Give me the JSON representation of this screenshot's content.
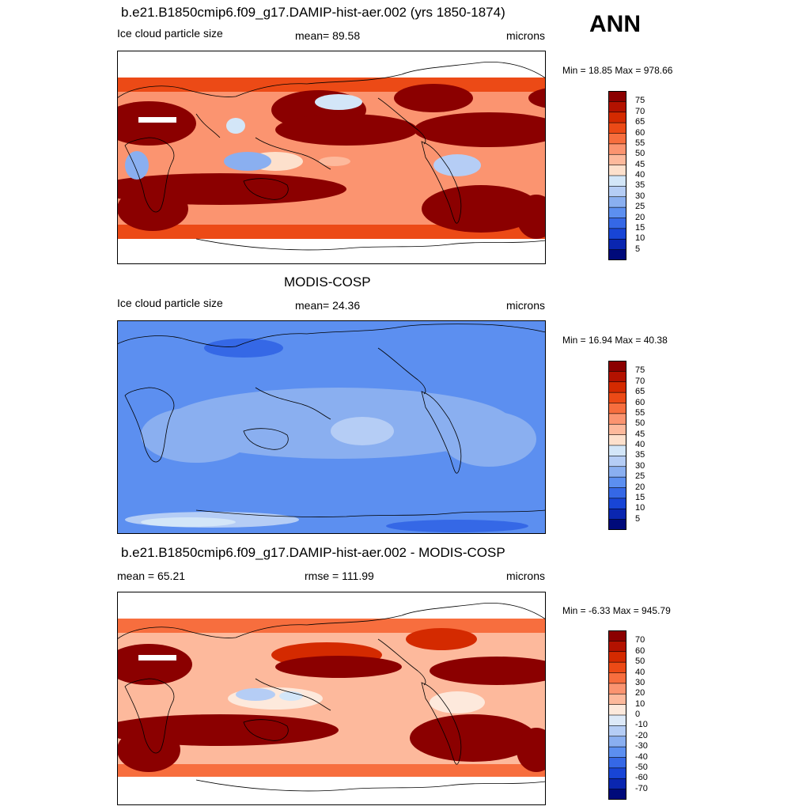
{
  "season": "ANN",
  "panels": [
    {
      "title": "b.e21.B1850cmip6.f09_g17.DAMIP-hist-aer.002 (yrs 1850-1874)",
      "left_label": "Ice cloud particle size",
      "center_label": "mean=  89.58",
      "units": "microns",
      "minmax": "Min =  18.85 Max = 978.66",
      "colorbar_labels": [
        "75",
        "70",
        "65",
        "60",
        "55",
        "50",
        "45",
        "40",
        "35",
        "30",
        "25",
        "20",
        "15",
        "10",
        "5"
      ],
      "colorbar_colors": [
        "#8b0000",
        "#b31200",
        "#d42a00",
        "#ec4a16",
        "#f76e3e",
        "#fb9470",
        "#fdb99c",
        "#fde0cc",
        "#d3e6f8",
        "#b5cdf5",
        "#8aaff0",
        "#5c8ff0",
        "#3568e6",
        "#1845d6",
        "#0a26b0",
        "#000a7a"
      ]
    },
    {
      "title": "MODIS-COSP",
      "left_label": "Ice cloud particle size",
      "center_label": "mean=  24.36",
      "units": "microns",
      "minmax": "Min =  16.94 Max =  40.38",
      "colorbar_labels": [
        "75",
        "70",
        "65",
        "60",
        "55",
        "50",
        "45",
        "40",
        "35",
        "30",
        "25",
        "20",
        "15",
        "10",
        "5"
      ],
      "colorbar_colors": [
        "#8b0000",
        "#b31200",
        "#d42a00",
        "#ec4a16",
        "#f76e3e",
        "#fb9470",
        "#fdb99c",
        "#fde0cc",
        "#d3e6f8",
        "#b5cdf5",
        "#8aaff0",
        "#5c8ff0",
        "#3568e6",
        "#1845d6",
        "#0a26b0",
        "#000a7a"
      ]
    },
    {
      "title": "b.e21.B1850cmip6.f09_g17.DAMIP-hist-aer.002 - MODIS-COSP",
      "left_label": "mean =  65.21",
      "center_label": "rmse = 111.99",
      "units": "microns",
      "minmax": "Min =  -6.33 Max = 945.79",
      "colorbar_labels": [
        "70",
        "60",
        "50",
        "40",
        "30",
        "20",
        "10",
        "0",
        "-10",
        "-20",
        "-30",
        "-40",
        "-50",
        "-60",
        "-70"
      ],
      "colorbar_colors": [
        "#8b0000",
        "#b31200",
        "#d42a00",
        "#ec4a16",
        "#f76e3e",
        "#fb9470",
        "#fdb99c",
        "#fde9dc",
        "#dde9f8",
        "#b5cdf5",
        "#8aaff0",
        "#5c8ff0",
        "#3568e6",
        "#1845d6",
        "#0a26b0",
        "#000a7a"
      ]
    }
  ],
  "map_colors": {
    "land_outline": "#000000",
    "missing": "#ffffff"
  }
}
